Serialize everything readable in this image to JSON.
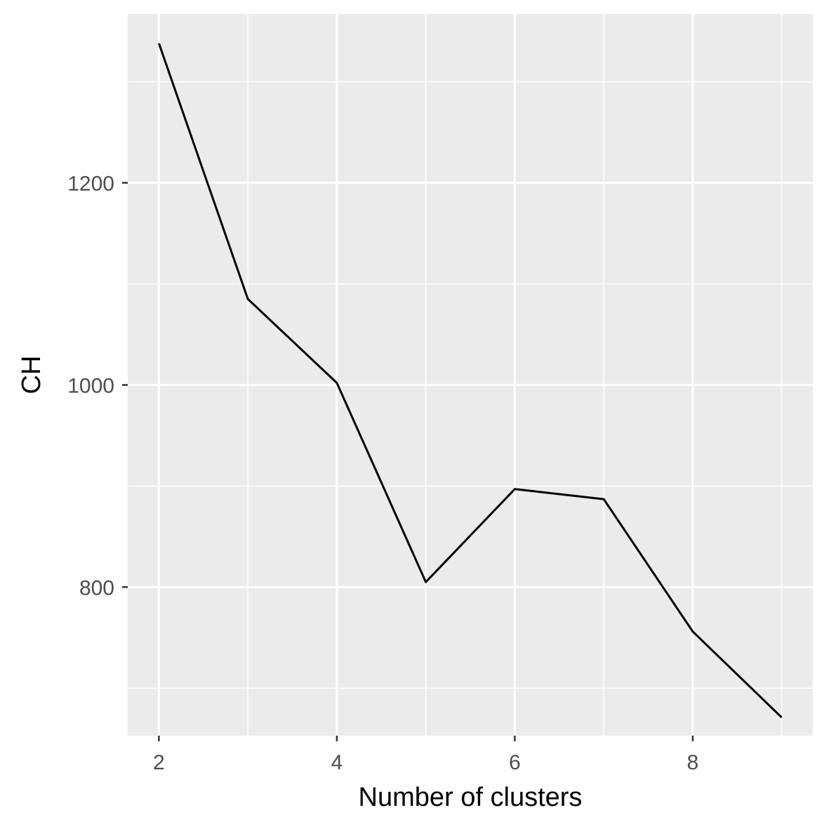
{
  "chart_data": {
    "type": "line",
    "title": "",
    "xlabel": "Number of clusters",
    "ylabel": "CH",
    "x": [
      2,
      3,
      4,
      5,
      6,
      7,
      8,
      9
    ],
    "series": [
      {
        "name": "CH",
        "values": [
          1338,
          1085,
          1002,
          805,
          897,
          887,
          756,
          671
        ]
      }
    ],
    "xlim": [
      1.65,
      9.35
    ],
    "ylim": [
      653,
      1367
    ],
    "xticks": [
      2,
      4,
      6,
      8
    ],
    "xticks_minor": [
      3,
      5,
      7,
      9
    ],
    "yticks": [
      800,
      1000,
      1200
    ],
    "yticks_minor": [
      700,
      900,
      1100,
      1300
    ],
    "grid": true,
    "colors": {
      "panel": "#ebebeb",
      "grid": "#ffffff",
      "line": "#000000",
      "tick_text": "#4d4d4d",
      "title_text": "#000000"
    }
  }
}
